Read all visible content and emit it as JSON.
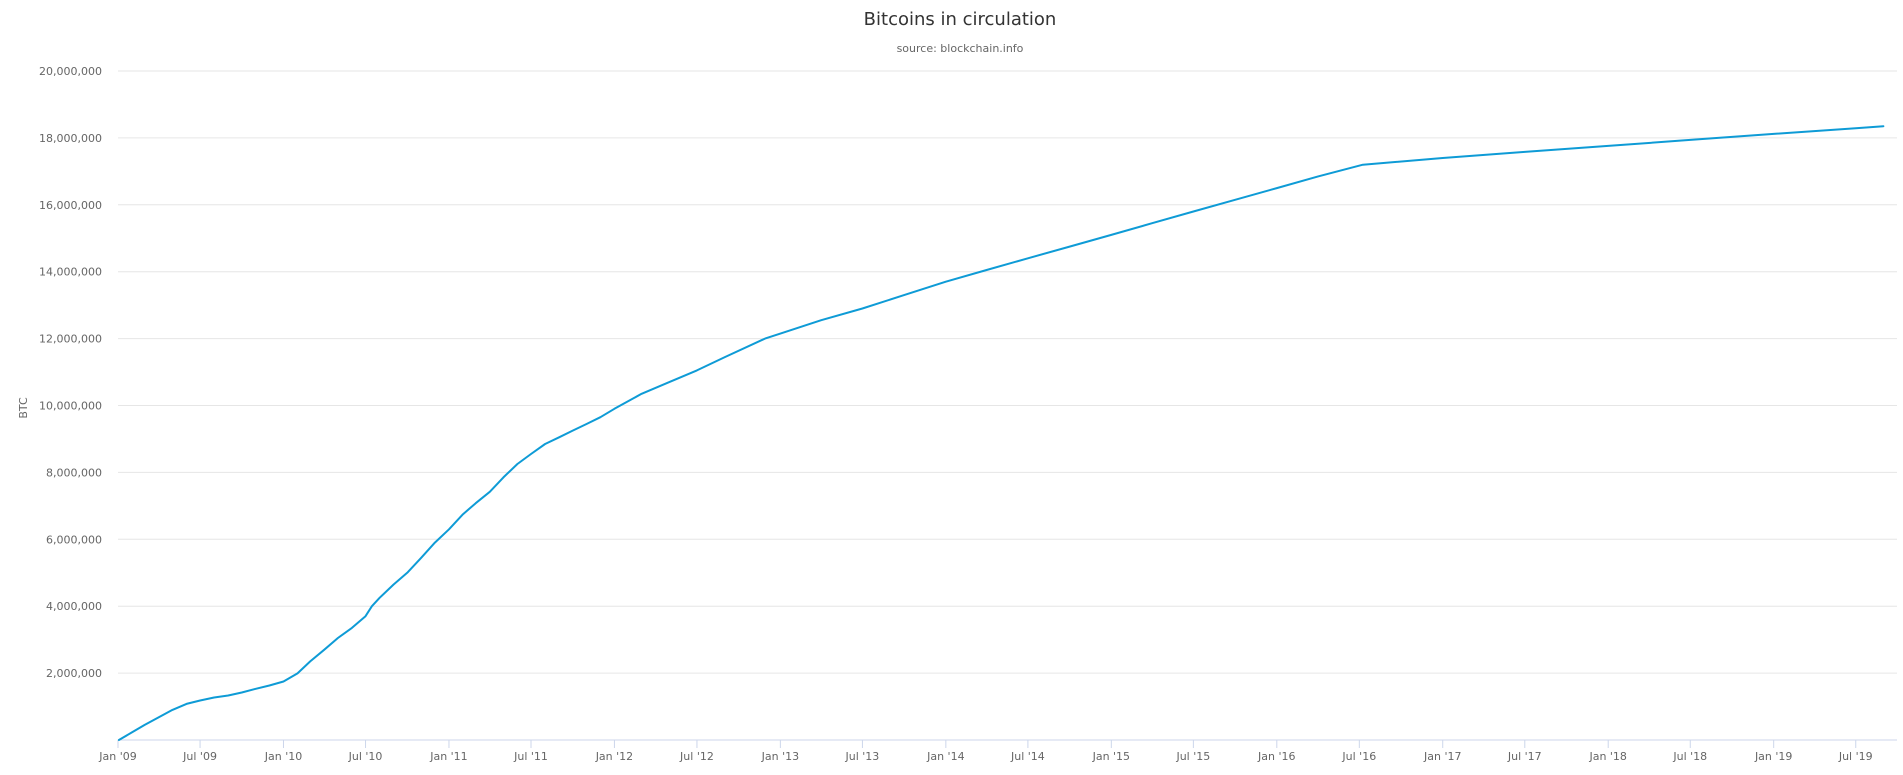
{
  "chart_data": {
    "type": "line",
    "title": "Bitcoins in circulation",
    "subtitle": "source: blockchain.info",
    "xlabel": "",
    "ylabel": "BTC",
    "x_scale": "time",
    "xlim": [
      "2009-01-01",
      "2019-09-30"
    ],
    "ylim": [
      0,
      20000000
    ],
    "grid": "horizontal",
    "legend": "none",
    "line_color": "#0e9bd6",
    "y_ticks": [
      {
        "value": 2000000,
        "label": "2,000,000"
      },
      {
        "value": 4000000,
        "label": "4,000,000"
      },
      {
        "value": 6000000,
        "label": "6,000,000"
      },
      {
        "value": 8000000,
        "label": "8,000,000"
      },
      {
        "value": 10000000,
        "label": "10,000,000"
      },
      {
        "value": 12000000,
        "label": "12,000,000"
      },
      {
        "value": 14000000,
        "label": "14,000,000"
      },
      {
        "value": 16000000,
        "label": "16,000,000"
      },
      {
        "value": 18000000,
        "label": "18,000,000"
      },
      {
        "value": 20000000,
        "label": "20,000,000"
      }
    ],
    "x_ticks": [
      {
        "date": "2009-01-01",
        "label": "Jan '09"
      },
      {
        "date": "2009-07-01",
        "label": "Jul '09"
      },
      {
        "date": "2010-01-01",
        "label": "Jan '10"
      },
      {
        "date": "2010-07-01",
        "label": "Jul '10"
      },
      {
        "date": "2011-01-01",
        "label": "Jan '11"
      },
      {
        "date": "2011-07-01",
        "label": "Jul '11"
      },
      {
        "date": "2012-01-01",
        "label": "Jan '12"
      },
      {
        "date": "2012-07-01",
        "label": "Jul '12"
      },
      {
        "date": "2013-01-01",
        "label": "Jan '13"
      },
      {
        "date": "2013-07-01",
        "label": "Jul '13"
      },
      {
        "date": "2014-01-01",
        "label": "Jan '14"
      },
      {
        "date": "2014-07-01",
        "label": "Jul '14"
      },
      {
        "date": "2015-01-01",
        "label": "Jan '15"
      },
      {
        "date": "2015-07-01",
        "label": "Jul '15"
      },
      {
        "date": "2016-01-01",
        "label": "Jan '16"
      },
      {
        "date": "2016-07-01",
        "label": "Jul '16"
      },
      {
        "date": "2017-01-01",
        "label": "Jan '17"
      },
      {
        "date": "2017-07-01",
        "label": "Jul '17"
      },
      {
        "date": "2018-01-01",
        "label": "Jan '18"
      },
      {
        "date": "2018-07-01",
        "label": "Jul '18"
      },
      {
        "date": "2019-01-01",
        "label": "Jan '19"
      },
      {
        "date": "2019-07-01",
        "label": "Jul '19"
      }
    ],
    "series": [
      {
        "points": [
          [
            "2009-01-03",
            50
          ],
          [
            "2009-02-01",
            230000
          ],
          [
            "2009-03-01",
            450000
          ],
          [
            "2009-04-01",
            680000
          ],
          [
            "2009-05-01",
            900000
          ],
          [
            "2009-06-01",
            1080000
          ],
          [
            "2009-07-01",
            1180000
          ],
          [
            "2009-08-01",
            1270000
          ],
          [
            "2009-09-01",
            1330000
          ],
          [
            "2009-10-01",
            1420000
          ],
          [
            "2009-11-01",
            1530000
          ],
          [
            "2009-12-01",
            1630000
          ],
          [
            "2010-01-01",
            1750000
          ],
          [
            "2010-02-01",
            1990000
          ],
          [
            "2010-03-01",
            2350000
          ],
          [
            "2010-04-01",
            2700000
          ],
          [
            "2010-05-01",
            3050000
          ],
          [
            "2010-06-01",
            3350000
          ],
          [
            "2010-07-01",
            3700000
          ],
          [
            "2010-07-15",
            4000000
          ],
          [
            "2010-08-01",
            4250000
          ],
          [
            "2010-09-01",
            4650000
          ],
          [
            "2010-10-01",
            5000000
          ],
          [
            "2010-11-01",
            5450000
          ],
          [
            "2010-12-01",
            5900000
          ],
          [
            "2011-01-01",
            6300000
          ],
          [
            "2011-02-01",
            6750000
          ],
          [
            "2011-03-01",
            7080000
          ],
          [
            "2011-04-01",
            7420000
          ],
          [
            "2011-05-01",
            7850000
          ],
          [
            "2011-06-01",
            8250000
          ],
          [
            "2011-07-01",
            8550000
          ],
          [
            "2011-08-01",
            8850000
          ],
          [
            "2011-09-01",
            9050000
          ],
          [
            "2011-10-01",
            9250000
          ],
          [
            "2011-11-01",
            9450000
          ],
          [
            "2011-12-01",
            9650000
          ],
          [
            "2012-01-01",
            9900000
          ],
          [
            "2012-03-01",
            10350000
          ],
          [
            "2012-05-01",
            10700000
          ],
          [
            "2012-07-01",
            11050000
          ],
          [
            "2012-09-01",
            11450000
          ],
          [
            "2012-11-28",
            12000000
          ],
          [
            "2013-01-01",
            12150000
          ],
          [
            "2013-04-01",
            12550000
          ],
          [
            "2013-07-01",
            12900000
          ],
          [
            "2013-10-01",
            13300000
          ],
          [
            "2014-01-01",
            13700000
          ],
          [
            "2014-04-01",
            14050000
          ],
          [
            "2014-07-01",
            14400000
          ],
          [
            "2014-10-01",
            14750000
          ],
          [
            "2015-01-01",
            15100000
          ],
          [
            "2015-04-01",
            15450000
          ],
          [
            "2015-07-01",
            15800000
          ],
          [
            "2015-10-01",
            16150000
          ],
          [
            "2016-01-01",
            16500000
          ],
          [
            "2016-04-01",
            16850000
          ],
          [
            "2016-07-09",
            17200000
          ],
          [
            "2017-01-01",
            17400000
          ],
          [
            "2017-07-01",
            17580000
          ],
          [
            "2018-01-01",
            17760000
          ],
          [
            "2018-07-01",
            17940000
          ],
          [
            "2019-01-01",
            18120000
          ],
          [
            "2019-07-01",
            18290000
          ],
          [
            "2019-08-31",
            18350000
          ]
        ]
      }
    ]
  }
}
